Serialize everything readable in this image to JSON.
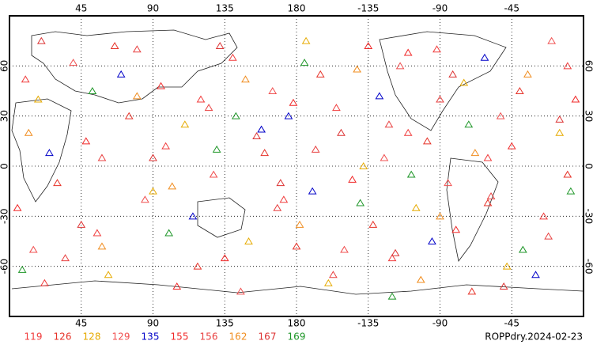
{
  "chart_data": {
    "type": "map",
    "title": "ROPPdry.2024-02-23",
    "xlim": [
      0,
      360
    ],
    "ylim": [
      -90,
      90
    ],
    "xticks": [
      45,
      90,
      135,
      180,
      {
        "value": 225,
        "label": "-135"
      },
      {
        "value": 270,
        "label": "-90"
      },
      {
        "value": 315,
        "label": "-45"
      }
    ],
    "yticks": [
      -60,
      -30,
      0,
      30,
      60
    ],
    "grid": true,
    "series": [
      {
        "name": "119",
        "color": "#f03c3c",
        "lon": [
          10,
          55,
          98,
          140,
          172,
          205,
          240,
          268,
          300,
          335,
          22,
          120,
          250,
          350
        ],
        "lat": [
          52,
          -40,
          12,
          65,
          -20,
          35,
          -55,
          70,
          5,
          -30,
          -70,
          40,
          20,
          60
        ]
      },
      {
        "name": "126",
        "color": "#e63228",
        "lon": [
          30,
          75,
          118,
          160,
          195,
          228,
          262,
          290,
          320,
          350,
          66,
          180,
          300
        ],
        "lat": [
          -10,
          30,
          -60,
          8,
          55,
          -35,
          15,
          -75,
          45,
          -5,
          72,
          -48,
          -22
        ]
      },
      {
        "name": "128",
        "color": "#e6aa00",
        "lon": [
          18,
          62,
          110,
          150,
          186,
          222,
          255,
          285,
          312,
          345,
          90,
          200
        ],
        "lat": [
          40,
          -65,
          25,
          -45,
          75,
          0,
          -25,
          50,
          -60,
          20,
          -15,
          -70
        ]
      },
      {
        "name": "129",
        "color": "#f05050",
        "lon": [
          40,
          85,
          128,
          165,
          210,
          245,
          275,
          308,
          340,
          15,
          145,
          235
        ],
        "lat": [
          62,
          -20,
          -5,
          45,
          -50,
          60,
          -10,
          30,
          75,
          -50,
          -75,
          5
        ]
      },
      {
        "name": "135",
        "color": "#0000c8",
        "lon": [
          25,
          70,
          115,
          158,
          190,
          232,
          265,
          298,
          330,
          175
        ],
        "lat": [
          8,
          55,
          -30,
          22,
          -15,
          42,
          -45,
          65,
          -65,
          30
        ]
      },
      {
        "name": "155",
        "color": "#f02828",
        "lon": [
          5,
          48,
          95,
          135,
          178,
          215,
          250,
          280,
          315,
          355,
          105,
          225
        ],
        "lat": [
          -25,
          15,
          48,
          -55,
          38,
          -8,
          68,
          -38,
          12,
          40,
          -72,
          72
        ]
      },
      {
        "name": "156",
        "color": "#e84040",
        "lon": [
          35,
          80,
          125,
          168,
          203,
          238,
          270,
          302,
          338,
          58,
          192
        ],
        "lat": [
          -55,
          70,
          35,
          -25,
          -65,
          25,
          40,
          -18,
          -42,
          5,
          10
        ]
      },
      {
        "name": "162",
        "color": "#f08c1e",
        "lon": [
          12,
          58,
          102,
          148,
          182,
          218,
          258,
          292,
          325,
          80,
          270
        ],
        "lat": [
          20,
          -48,
          -12,
          52,
          -35,
          58,
          -68,
          8,
          55,
          42,
          -30
        ]
      },
      {
        "name": "167",
        "color": "#dc3232",
        "lon": [
          45,
          90,
          132,
          170,
          208,
          242,
          278,
          310,
          345,
          20,
          155
        ],
        "lat": [
          -35,
          5,
          72,
          -10,
          20,
          -52,
          55,
          -72,
          28,
          75,
          18
        ]
      },
      {
        "name": "169",
        "color": "#1e9628",
        "lon": [
          8,
          52,
          100,
          142,
          185,
          220,
          252,
          288,
          322,
          352,
          130,
          240
        ],
        "lat": [
          -62,
          45,
          -40,
          30,
          62,
          -22,
          -5,
          25,
          -50,
          -15,
          10,
          -78
        ]
      }
    ]
  }
}
